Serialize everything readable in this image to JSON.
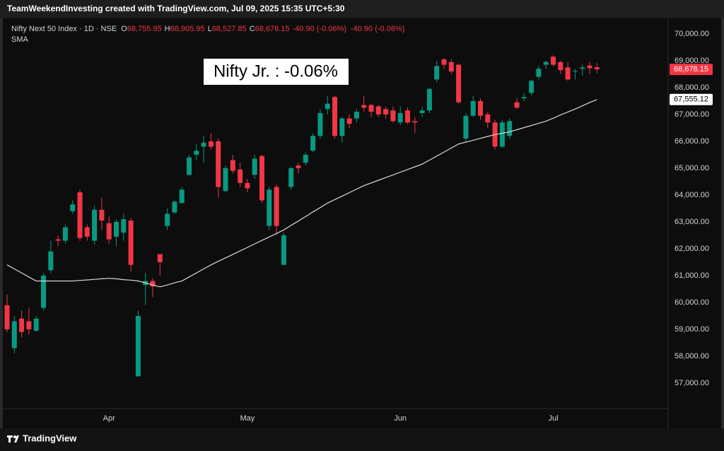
{
  "header": {
    "credit": "TeamWeekendInvesting created with TradingView.com, Jul 09, 2025 15:35 UTC+5:30"
  },
  "legend": {
    "symbol": "Nifty Next 50 Index · 1D · NSE",
    "items": [
      {
        "key": "O",
        "value": "68,755.95"
      },
      {
        "key": "H",
        "value": "68,905.95"
      },
      {
        "key": "L",
        "value": "68,527.85"
      },
      {
        "key": "C",
        "value": "68,678.15"
      }
    ],
    "change": "-40.90 (-0.06%)",
    "change2": "-40.90 (-0.06%)",
    "indicator": "SMA"
  },
  "footer": {
    "brand": "TradingView"
  },
  "chart_data": {
    "type": "candlestick",
    "annotation": "Nifty Jr. : -0.06%",
    "up_color": "#089981",
    "down_color": "#f23645",
    "categories": [
      null,
      null,
      null,
      null,
      null,
      null,
      null,
      null,
      null,
      null,
      null,
      null,
      null,
      null,
      "Apr",
      null,
      null,
      null,
      null,
      null,
      null,
      null,
      null,
      null,
      null,
      null,
      null,
      null,
      null,
      null,
      null,
      null,
      null,
      "May",
      null,
      null,
      null,
      null,
      null,
      null,
      null,
      null,
      null,
      null,
      null,
      null,
      null,
      null,
      null,
      null,
      null,
      null,
      null,
      null,
      "Jun",
      null,
      null,
      null,
      null,
      null,
      null,
      null,
      null,
      null,
      null,
      null,
      null,
      null,
      null,
      null,
      null,
      null,
      null,
      null,
      null,
      "Jul",
      null,
      null,
      null,
      null,
      null,
      null
    ],
    "open": [
      59900,
      58300,
      59400,
      59300,
      58950,
      59800,
      61200,
      62350,
      62300,
      63400,
      64100,
      62800,
      62300,
      63450,
      62950,
      62450,
      62600,
      63050,
      57250,
      60650,
      60800,
      61800,
      62850,
      63350,
      63700,
      64750,
      65500,
      65800,
      66000,
      66000,
      64150,
      65300,
      64950,
      64450,
      64750,
      65450,
      62850,
      64300,
      61400,
      64300,
      65100,
      65200,
      65650,
      66200,
      67200,
      67650,
      66200,
      66850,
      66850,
      67350,
      67350,
      67300,
      67200,
      67150,
      66700,
      67150,
      66750,
      67050,
      67150,
      68300,
      69050,
      68950,
      68850,
      66100,
      66950,
      67500,
      67000,
      66700,
      65800,
      66200,
      67450,
      67600,
      67800,
      68400,
      68850,
      69150,
      68950,
      68750,
      68600,
      68700,
      68820,
      68755.95
    ],
    "high": [
      60300,
      59500,
      59700,
      59800,
      59500,
      61100,
      62300,
      62500,
      62900,
      63800,
      64200,
      62900,
      63600,
      63900,
      63200,
      63100,
      63300,
      63150,
      59700,
      61100,
      60900,
      61800,
      63500,
      63800,
      64300,
      65500,
      65900,
      66200,
      66300,
      66100,
      65100,
      65500,
      65200,
      64600,
      65500,
      65500,
      64300,
      64400,
      62600,
      65050,
      65200,
      65600,
      66300,
      67200,
      67700,
      67700,
      66900,
      67000,
      67200,
      67700,
      67400,
      67350,
      67300,
      67300,
      67300,
      67250,
      66900,
      67300,
      68000,
      69000,
      69100,
      69050,
      68900,
      67050,
      67700,
      67600,
      67100,
      66800,
      66800,
      66850,
      67600,
      67800,
      68300,
      68800,
      69000,
      69200,
      69000,
      68950,
      68700,
      68850,
      68950,
      68905.95
    ],
    "low": [
      58900,
      58100,
      58700,
      58800,
      58900,
      59700,
      61100,
      62100,
      62200,
      63300,
      62300,
      62300,
      62150,
      62700,
      62200,
      62100,
      62300,
      61150,
      57250,
      59900,
      60200,
      61000,
      62700,
      63300,
      63700,
      64700,
      65300,
      65200,
      65700,
      63900,
      64100,
      64800,
      64300,
      64100,
      64600,
      63700,
      62700,
      62500,
      61400,
      64200,
      64800,
      65100,
      65600,
      66100,
      67000,
      66100,
      65950,
      66500,
      66700,
      67100,
      66900,
      66900,
      66850,
      66700,
      66600,
      66650,
      66300,
      66900,
      67050,
      68200,
      68700,
      68500,
      67400,
      66000,
      66900,
      66800,
      66500,
      65700,
      65750,
      66100,
      67200,
      67500,
      67700,
      68300,
      68700,
      68800,
      68500,
      68250,
      68300,
      68450,
      68500,
      68527.85
    ],
    "close": [
      59000,
      59300,
      58900,
      59000,
      59400,
      61000,
      61900,
      62300,
      62800,
      63650,
      62400,
      62450,
      63450,
      63050,
      62350,
      63000,
      63100,
      61400,
      59500,
      60800,
      60600,
      61500,
      63300,
      63750,
      64200,
      65400,
      65650,
      65950,
      65800,
      64300,
      65000,
      64900,
      64450,
      64250,
      65350,
      63800,
      64200,
      62850,
      62500,
      65000,
      65000,
      65500,
      66200,
      67050,
      67400,
      66200,
      66850,
      66650,
      67100,
      67250,
      67100,
      67000,
      67000,
      66750,
      67050,
      66700,
      66700,
      67150,
      67950,
      68800,
      68850,
      68600,
      67450,
      66950,
      67500,
      66950,
      66700,
      65800,
      66700,
      66750,
      67250,
      67650,
      68250,
      68700,
      68950,
      68850,
      68650,
      68300,
      68620,
      68750,
      68720,
      68678.15
    ],
    "sma": {
      "name": "SMA",
      "color": "#d8d8d8",
      "values": [
        61400,
        61250,
        61100,
        60950,
        60800,
        60800,
        60800,
        60800,
        60800,
        60800,
        60820,
        60840,
        60860,
        60880,
        60900,
        60880,
        60850,
        60830,
        60800,
        60730,
        60650,
        60580,
        60650,
        60730,
        60800,
        60950,
        61100,
        61250,
        61400,
        61530,
        61660,
        61790,
        61920,
        62050,
        62180,
        62310,
        62440,
        62570,
        62700,
        62870,
        63030,
        63200,
        63370,
        63530,
        63700,
        63830,
        63960,
        64090,
        64220,
        64350,
        64450,
        64550,
        64650,
        64750,
        64850,
        64950,
        65050,
        65150,
        65300,
        65450,
        65600,
        65750,
        65900,
        65970,
        66040,
        66110,
        66180,
        66250,
        66300,
        66350,
        66430,
        66510,
        66590,
        66670,
        66750,
        66860,
        66980,
        67090,
        67200,
        67320,
        67440,
        67555.12
      ]
    },
    "price_labels": [
      {
        "value": 68678.15,
        "label": "68,678.15",
        "color": "#f23645",
        "text_color": "#ffffff"
      },
      {
        "value": 67555.12,
        "label": "67,555.12",
        "color": "#ffffff",
        "text_color": "#000000"
      }
    ],
    "ylim": [
      56050,
      70470
    ],
    "yticks": [
      {
        "value": 57000,
        "label": "57,000.00"
      },
      {
        "value": 58000,
        "label": "58,000.00"
      },
      {
        "value": 59000,
        "label": "59,000.00"
      },
      {
        "value": 60000,
        "label": "60,000.00"
      },
      {
        "value": 61000,
        "label": "61,000.00"
      },
      {
        "value": 62000,
        "label": "62,000.00"
      },
      {
        "value": 63000,
        "label": "63,000.00"
      },
      {
        "value": 64000,
        "label": "64,000.00"
      },
      {
        "value": 65000,
        "label": "65,000.00"
      },
      {
        "value": 66000,
        "label": "66,000.00"
      },
      {
        "value": 67000,
        "label": "67,000.00"
      },
      {
        "value": 68000,
        "label": "68,000.00"
      },
      {
        "value": 69000,
        "label": "69,000.00"
      },
      {
        "value": 70000,
        "label": "70,000.00"
      }
    ],
    "grid": false
  }
}
